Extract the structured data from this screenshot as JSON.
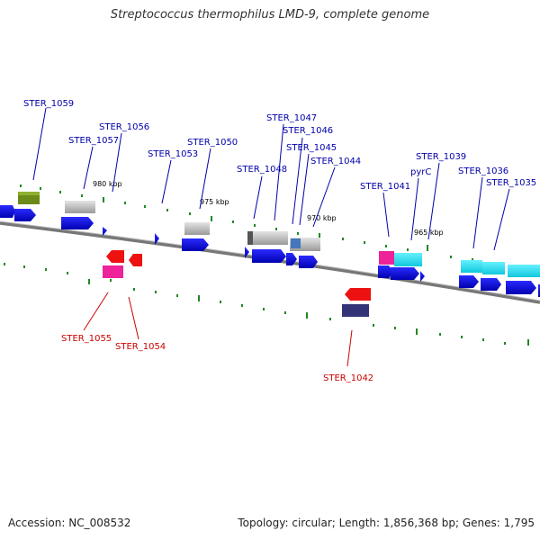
{
  "title": "Streptococcus thermophilus LMD-9, complete genome",
  "footer": {
    "accession": "Accession: NC_008532",
    "topology": "Topology: circular; Length: 1,856,368 bp; Genes: 1,795"
  },
  "scale_labels": [
    "980 kbp",
    "975 kbp",
    "970 kbp",
    "965 kbp"
  ],
  "gene_labels_top": [
    "STER_1059",
    "STER_1057",
    "STER_1056",
    "STER_1053",
    "STER_1050",
    "STER_1048",
    "STER_1047",
    "STER_1046",
    "STER_1045",
    "STER_1044",
    "STER_1041",
    "pyrC",
    "STER_1039",
    "STER_1036",
    "STER_1035"
  ],
  "gene_labels_bottom": [
    "STER_1055",
    "STER_1054",
    "STER_1042"
  ],
  "colors": {
    "backbone": "#808080",
    "cds_blue": "#1010dd",
    "tick_green": "#228822",
    "olive": "#6b8a1a",
    "red": "#ee1111",
    "magenta": "#ee2299",
    "cyan": "#22ddee",
    "gray": "#bbbbbb",
    "navy": "#333377",
    "steel": "#4477bb"
  }
}
